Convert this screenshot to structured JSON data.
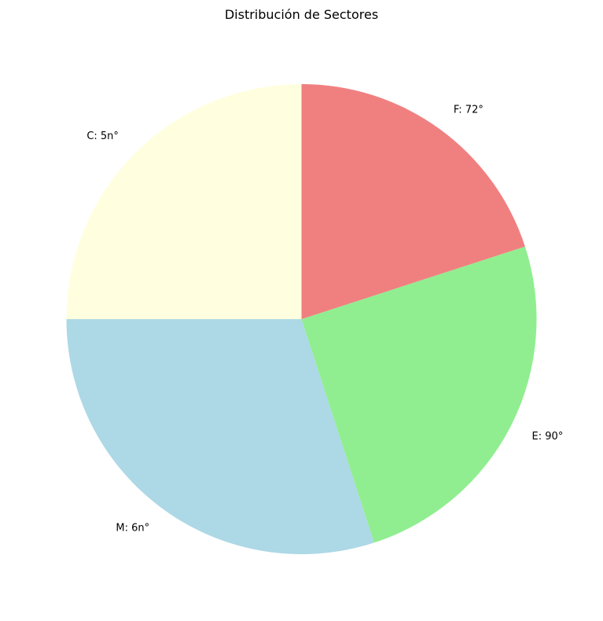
{
  "chart_data": {
    "type": "pie",
    "title": "Distribución de Sectores",
    "slices": [
      {
        "label": "C: 5n°",
        "value": 90,
        "color": "#ffffe0"
      },
      {
        "label": "M: 6n°",
        "value": 108,
        "color": "#add8e6"
      },
      {
        "label": "E: 90°",
        "value": 90,
        "color": "#90ee90"
      },
      {
        "label": "F: 72°",
        "value": 72,
        "color": "#f08080"
      }
    ],
    "start_angle_deg": 90,
    "direction": "counterclockwise"
  }
}
